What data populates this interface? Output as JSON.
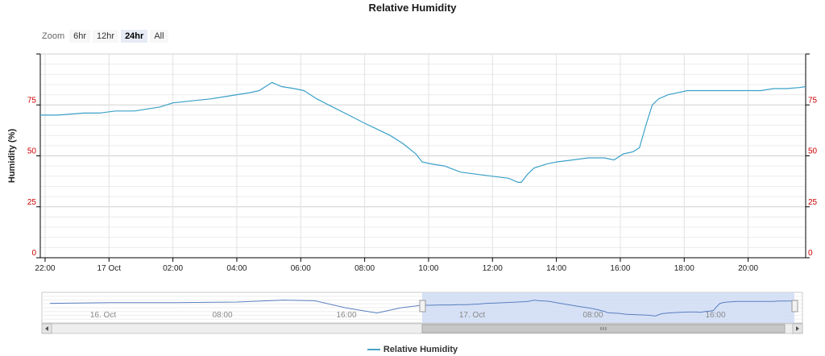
{
  "title": "Relative Humidity",
  "zoom": {
    "label": "Zoom",
    "buttons": [
      "6hr",
      "12hr",
      "24hr",
      "All"
    ],
    "selected": "24hr"
  },
  "legend": {
    "label": "Relative Humidity"
  },
  "colors": {
    "series": "#3aa0c8",
    "yTicks": "#cc0000",
    "navSeries": "#5a7fc0",
    "navSelected": "#cfdcf5"
  },
  "navigator": {
    "labels": [
      "16. Oct",
      "08:00",
      "16:00",
      "17. Oct",
      "08:00",
      "16:00"
    ]
  },
  "chart_data": {
    "type": "line",
    "title": "Relative Humidity",
    "ylabel": "Humidity (%)",
    "ylim": [
      0,
      100
    ],
    "yticks": [
      0,
      25,
      50,
      75
    ],
    "xticks": [
      "22:00",
      "17 Oct",
      "02:00",
      "04:00",
      "06:00",
      "08:00",
      "10:00",
      "12:00",
      "14:00",
      "16:00",
      "18:00",
      "20:00"
    ],
    "xlim_hours": [
      -2.15,
      21.8
    ],
    "grid": true,
    "series": [
      {
        "name": "Relative Humidity",
        "x": [
          -2.15,
          -1.6,
          -1.2,
          -0.8,
          -0.3,
          0.2,
          0.8,
          1.2,
          1.6,
          2.0,
          2.6,
          3.2,
          3.6,
          4.0,
          4.4,
          4.7,
          4.9,
          5.1,
          5.4,
          5.8,
          6.1,
          6.5,
          7.0,
          7.5,
          8.0,
          8.4,
          8.8,
          9.2,
          9.6,
          9.8,
          10.1,
          10.5,
          11.0,
          11.5,
          12.0,
          12.5,
          12.8,
          12.9,
          13.1,
          13.3,
          13.7,
          14.0,
          14.5,
          15.0,
          15.5,
          15.8,
          16.1,
          16.4,
          16.6,
          16.8,
          17.0,
          17.2,
          17.5,
          17.8,
          18.1,
          18.4,
          18.8,
          19.2,
          19.6,
          20.0,
          20.4,
          20.8,
          21.2,
          21.6,
          21.8
        ],
        "y": [
          70,
          70,
          70.5,
          71,
          71,
          72,
          72,
          73,
          74,
          76,
          77,
          78,
          79,
          80,
          81,
          82,
          84,
          86,
          84,
          83,
          82,
          78,
          74,
          70,
          66,
          63,
          60,
          56,
          51,
          47,
          46,
          45,
          42,
          41,
          40,
          39,
          37,
          37,
          41,
          44,
          46,
          47,
          48,
          49,
          49,
          48,
          51,
          52,
          54,
          65,
          75,
          78,
          80,
          81,
          82,
          82,
          82,
          82,
          82,
          82,
          82,
          83,
          83,
          83.5,
          84
        ]
      }
    ]
  }
}
